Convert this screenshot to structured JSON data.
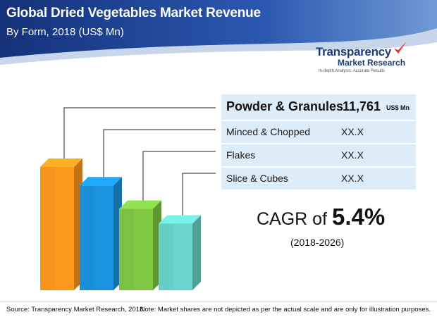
{
  "header": {
    "title": "Global Dried Vegetables Market Revenue",
    "subtitle": "By Form, 2018 (US$ Mn)"
  },
  "logo": {
    "line1": "Transparency",
    "line2": "Market Research",
    "tagline": "In-depth Analysis. Accurate Results"
  },
  "chart_data": {
    "type": "bar",
    "title": "Global Dried Vegetables Market Revenue",
    "subtitle": "By Form, 2018 (US$ Mn)",
    "categories": [
      "Powder & Granules",
      "Minced & Chopped",
      "Flakes",
      "Slice & Cubes"
    ],
    "display_values": [
      "11,761",
      "XX.X",
      "XX.X",
      "XX.X"
    ],
    "unit": "US$ Mn",
    "relative_heights": [
      1.0,
      0.85,
      0.66,
      0.54
    ],
    "colors": [
      "#f7941d",
      "#1a8fd6",
      "#7cc142",
      "#66cec4"
    ],
    "xlabel": "",
    "ylabel": ""
  },
  "cagr": {
    "prefix": "CAGR of",
    "value": "5.4%",
    "period": "(2018-2026)"
  },
  "footer": {
    "source": "Source: Transparency Market Research, 2018",
    "note": "Note: Market shares are not depicted as per the actual scale and are only for illustration purposes."
  },
  "colors": {
    "header_blue": "#1f3f8f",
    "row_bg": "#dcecf8"
  }
}
